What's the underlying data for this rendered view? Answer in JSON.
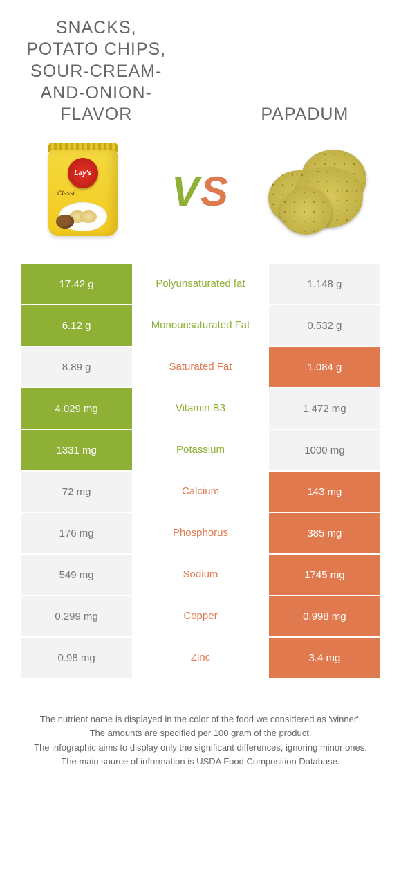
{
  "header": {
    "left_title": "Snacks, potato chips, sour-cream-and-onion-flavor",
    "right_title": "Papadum",
    "vs_v": "V",
    "vs_s": "S",
    "chips_logo": "Lay's",
    "chips_classic": "Classic"
  },
  "colors": {
    "green": "#8eb035",
    "orange": "#e07a4e",
    "light": "#f3f3f3",
    "bg": "#ffffff"
  },
  "rows": [
    {
      "left": "17.42 g",
      "mid": "Polyunsaturated fat",
      "right": "1.148 g",
      "winner": "left"
    },
    {
      "left": "6.12 g",
      "mid": "Monounsaturated Fat",
      "right": "0.532 g",
      "winner": "left"
    },
    {
      "left": "8.89 g",
      "mid": "Saturated Fat",
      "right": "1.084 g",
      "winner": "right"
    },
    {
      "left": "4.029 mg",
      "mid": "Vitamin B3",
      "right": "1.472 mg",
      "winner": "left"
    },
    {
      "left": "1331 mg",
      "mid": "Potassium",
      "right": "1000 mg",
      "winner": "left"
    },
    {
      "left": "72 mg",
      "mid": "Calcium",
      "right": "143 mg",
      "winner": "right"
    },
    {
      "left": "176 mg",
      "mid": "Phosphorus",
      "right": "385 mg",
      "winner": "right"
    },
    {
      "left": "549 mg",
      "mid": "Sodium",
      "right": "1745 mg",
      "winner": "right"
    },
    {
      "left": "0.299 mg",
      "mid": "Copper",
      "right": "0.998 mg",
      "winner": "right"
    },
    {
      "left": "0.98 mg",
      "mid": "Zinc",
      "right": "3.4 mg",
      "winner": "right"
    }
  ],
  "footer": {
    "line1": "The nutrient name is displayed in the color of the food we considered as 'winner'.",
    "line2": "The amounts are specified per 100 gram of the product.",
    "line3": "The infographic aims to display only the significant differences, ignoring minor ones.",
    "line4": "The main source of information is USDA Food Composition Database."
  }
}
